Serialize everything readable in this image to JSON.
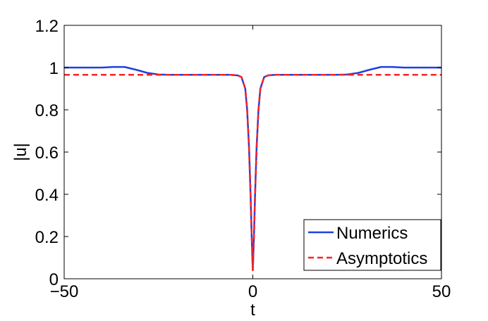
{
  "chart_data": {
    "type": "line",
    "xlabel": "t",
    "ylabel": "|u|",
    "xlim": [
      -50,
      50
    ],
    "ylim": [
      0,
      1.2
    ],
    "xticks": [
      -50,
      0,
      50
    ],
    "xtick_labels": [
      "−50",
      "0",
      "50"
    ],
    "yticks": [
      0,
      0.2,
      0.4,
      0.6,
      0.8,
      1,
      1.2
    ],
    "ytick_labels": [
      "0",
      "0.2",
      "0.4",
      "0.6",
      "0.8",
      "1",
      "1.2"
    ],
    "grid": false,
    "legend_position": "bottom-right",
    "series": [
      {
        "name": "Numerics",
        "color": "#2040e0",
        "style": "solid",
        "x": [
          -50,
          -45,
          -40,
          -37,
          -34,
          -31,
          -28,
          -25,
          -22,
          -18,
          -14,
          -10,
          -6,
          -4,
          -3,
          -2,
          -1.5,
          -1,
          -0.6,
          -0.3,
          0,
          0.3,
          0.6,
          1,
          1.5,
          2,
          3,
          4,
          6,
          10,
          14,
          18,
          22,
          25,
          28,
          31,
          34,
          37,
          40,
          45,
          50
        ],
        "y": [
          1.0,
          1.0,
          1.0,
          1.003,
          1.003,
          0.99,
          0.975,
          0.967,
          0.966,
          0.966,
          0.966,
          0.966,
          0.966,
          0.963,
          0.955,
          0.9,
          0.8,
          0.62,
          0.4,
          0.2,
          0.04,
          0.2,
          0.4,
          0.62,
          0.8,
          0.9,
          0.955,
          0.963,
          0.966,
          0.966,
          0.966,
          0.966,
          0.966,
          0.967,
          0.975,
          0.99,
          1.003,
          1.003,
          1.0,
          1.0,
          1.0
        ]
      },
      {
        "name": "Asymptotics",
        "color": "#ff2020",
        "style": "dashed",
        "x": [
          -50,
          -10,
          -6,
          -4,
          -3,
          -2,
          -1.5,
          -1,
          -0.6,
          -0.3,
          0,
          0.3,
          0.6,
          1,
          1.5,
          2,
          3,
          4,
          6,
          10,
          50
        ],
        "y": [
          0.966,
          0.966,
          0.966,
          0.963,
          0.955,
          0.9,
          0.8,
          0.62,
          0.4,
          0.2,
          0.04,
          0.2,
          0.4,
          0.62,
          0.8,
          0.9,
          0.955,
          0.963,
          0.966,
          0.966,
          0.966
        ]
      }
    ]
  }
}
